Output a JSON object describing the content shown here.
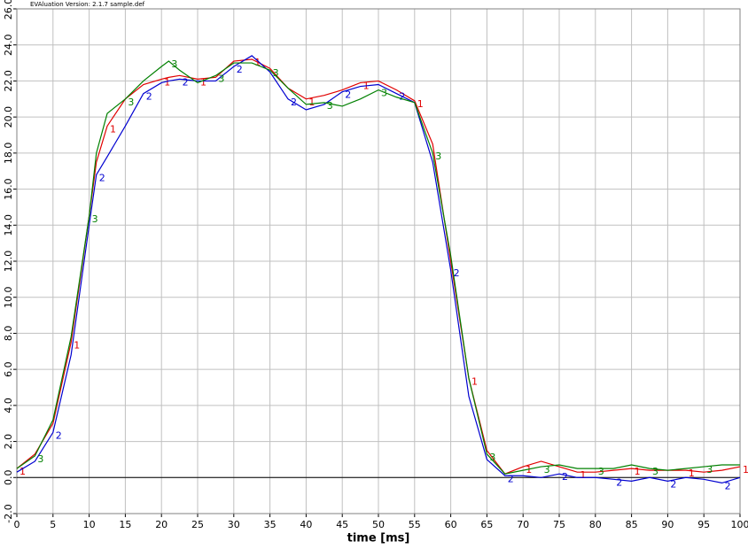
{
  "chart_data": {
    "type": "line",
    "header": "EVAluation Version: 2.1.7 sample.def",
    "x_label": "time [ms]",
    "x": [
      0,
      2.5,
      5,
      7.5,
      10,
      11,
      12.5,
      15,
      17.5,
      20,
      21,
      22.5,
      25,
      27.5,
      30,
      32.5,
      35,
      37.5,
      40,
      42.5,
      45,
      47.5,
      50,
      52.5,
      55,
      57.5,
      60,
      62.5,
      65,
      67.5,
      70,
      72.5,
      75,
      77.5,
      80,
      82.5,
      85,
      87.5,
      90,
      92.5,
      95,
      97.5,
      100
    ],
    "series": [
      {
        "name": "1",
        "color": "#e00000",
        "values": [
          0.5,
          1.3,
          3.0,
          7.5,
          14.5,
          17.5,
          19.5,
          21.0,
          21.8,
          22.1,
          22.2,
          22.3,
          22.1,
          22.2,
          23.1,
          23.2,
          22.7,
          21.6,
          21.0,
          21.2,
          21.5,
          21.9,
          22.0,
          21.5,
          20.9,
          18.5,
          12.0,
          5.5,
          1.5,
          0.2,
          0.6,
          0.9,
          0.6,
          0.3,
          0.3,
          0.4,
          0.5,
          0.4,
          0.4,
          0.4,
          0.3,
          0.4,
          0.6
        ]
      },
      {
        "name": "2",
        "color": "#0000d0",
        "values": [
          0.3,
          0.9,
          2.5,
          6.8,
          14.0,
          16.8,
          17.8,
          19.5,
          21.3,
          21.9,
          22.0,
          22.1,
          22.0,
          22.0,
          22.8,
          23.4,
          22.5,
          21.0,
          20.4,
          20.7,
          21.4,
          21.7,
          21.8,
          21.3,
          20.8,
          17.5,
          11.5,
          4.5,
          1.0,
          0.1,
          0.1,
          0.0,
          0.2,
          0.0,
          0.0,
          -0.1,
          -0.2,
          0.0,
          -0.2,
          0.0,
          -0.1,
          -0.3,
          0.0
        ]
      },
      {
        "name": "3",
        "color": "#008000",
        "values": [
          0.5,
          1.2,
          3.2,
          7.8,
          14.5,
          18.0,
          20.2,
          21.0,
          22.0,
          22.8,
          23.1,
          22.6,
          21.9,
          22.3,
          23.0,
          23.0,
          22.6,
          21.6,
          20.7,
          20.8,
          20.6,
          21.0,
          21.5,
          21.1,
          20.8,
          18.0,
          12.3,
          5.5,
          1.3,
          0.2,
          0.4,
          0.6,
          0.7,
          0.5,
          0.5,
          0.5,
          0.7,
          0.5,
          0.4,
          0.5,
          0.6,
          0.7,
          0.7
        ]
      }
    ],
    "xlim": [
      0,
      100
    ],
    "xticks": [
      0,
      5,
      10,
      15,
      20,
      25,
      30,
      35,
      40,
      45,
      50,
      55,
      60,
      65,
      70,
      75,
      80,
      85,
      90,
      95,
      100
    ],
    "ylim": [
      -2,
      26
    ],
    "yticks": [
      {
        "value": -2,
        "label": "-2.0"
      },
      {
        "value": 0,
        "label": "0.0"
      },
      {
        "value": 2,
        "label": "2.0"
      },
      {
        "value": 4,
        "label": "4.0"
      },
      {
        "value": 6,
        "label": "6.0"
      },
      {
        "value": 8,
        "label": "8.0"
      },
      {
        "value": 10,
        "label": "10.0"
      },
      {
        "value": 12,
        "label": "12.0"
      },
      {
        "value": 14,
        "label": "14.0"
      },
      {
        "value": 16,
        "label": "16.0"
      },
      {
        "value": 18,
        "label": "18.0"
      },
      {
        "value": 20,
        "label": "20.0"
      },
      {
        "value": 22,
        "label": "22.0"
      },
      {
        "value": 24,
        "label": "24.0"
      },
      {
        "value": 26,
        "label": "26.0"
      }
    ],
    "grid": true
  }
}
